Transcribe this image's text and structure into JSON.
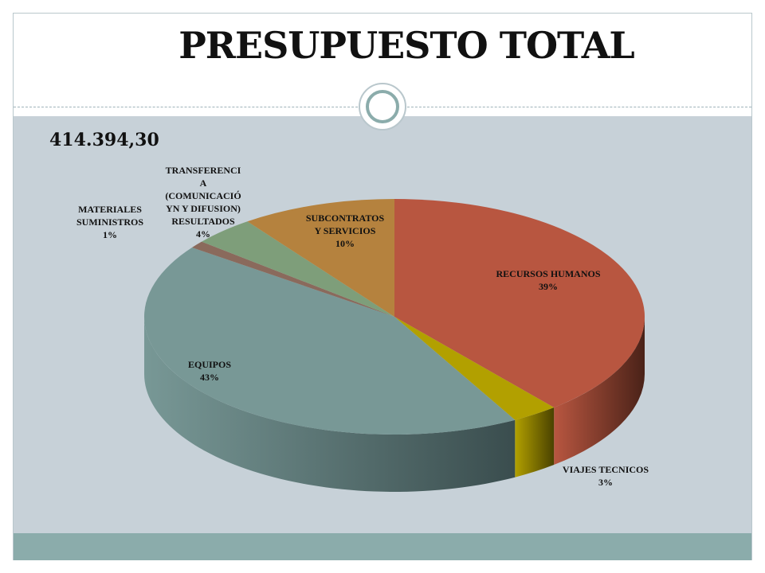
{
  "slide": {
    "title": "PRESUPUESTO TOTAL",
    "total": "414.394,30"
  },
  "chart_data": {
    "type": "pie",
    "style": "3d",
    "categories": [
      "RECURSOS  HUMANOS",
      "VIAJES TECNICOS",
      "EQUIPOS",
      "MATERIALES Y SUMINISTROS",
      "TRANSFERENCIA (COMUNICACIÓN Y DIFUSION) RESULTADOS",
      "SUBCONTRATOS Y SERVICIOS"
    ],
    "values": [
      39,
      3,
      43,
      1,
      4,
      10
    ],
    "percent_labels": [
      "39%",
      "3%",
      "43%",
      "1%",
      "4%",
      "10%"
    ],
    "colors": [
      "#b85640",
      "#b2a000",
      "#789896",
      "#8a6a5c",
      "#7e9e7a",
      "#b5823e"
    ],
    "side_colors": [
      "#4a2218",
      "#4a4200",
      "#3a4d4e",
      "#4a3a32",
      "#3e5540",
      "#5a3e1e"
    ],
    "label_lines": [
      [
        "RECURSOS  HUMANOS",
        "39%"
      ],
      [
        "VIAJES TECNICOS",
        "3%"
      ],
      [
        "EQUIPOS",
        "43%"
      ],
      [
        "MATERIALES",
        "SUMINISTROS",
        "1%"
      ],
      [
        "TRANSFERENCI",
        "A",
        "(COMUNICACIÓ",
        "YN Y DIFUSION)",
        "RESULTADOS",
        "4%"
      ],
      [
        "SUBCONTRATOS",
        "Y SERVICIOS",
        "10%"
      ]
    ]
  }
}
